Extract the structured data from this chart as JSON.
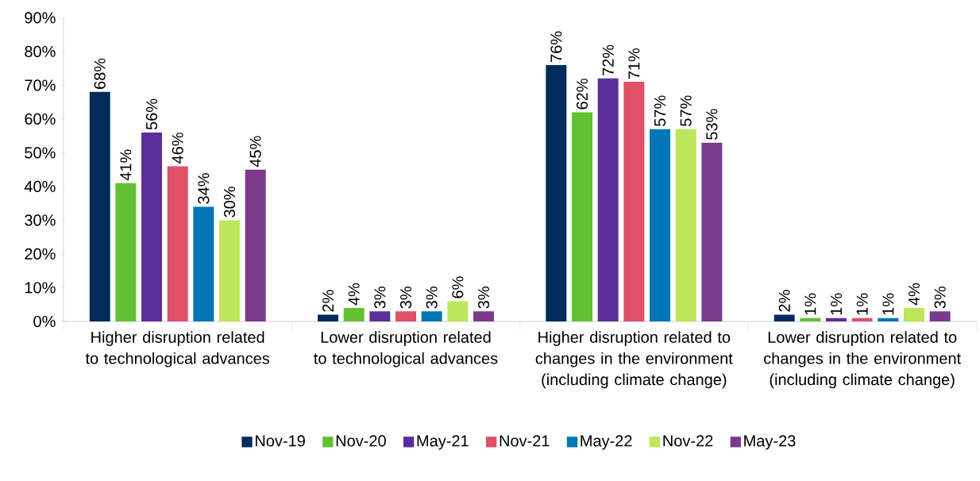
{
  "chart_data": {
    "type": "bar",
    "categories": [
      "Higher disruption related to technological advances",
      "Lower disruption related to technological advances",
      "Higher disruption related to changes in the environment (including climate change)",
      "Lower disruption related to changes in the environment (including climate change)"
    ],
    "series": [
      {
        "name": "Nov-19",
        "color": "#002b5c",
        "values": [
          68,
          2,
          76,
          2
        ],
        "value_labels": [
          "68%",
          "2%",
          "76%",
          "2%"
        ]
      },
      {
        "name": "Nov-20",
        "color": "#62c132",
        "values": [
          41,
          4,
          62,
          1
        ],
        "value_labels": [
          "41%",
          "4%",
          "62%",
          "1%"
        ]
      },
      {
        "name": "May-21",
        "color": "#5b2f9b",
        "values": [
          56,
          3,
          72,
          1
        ],
        "value_labels": [
          "56%",
          "3%",
          "72%",
          "1%"
        ]
      },
      {
        "name": "Nov-21",
        "color": "#e05067",
        "values": [
          46,
          3,
          71,
          1
        ],
        "value_labels": [
          "46%",
          "3%",
          "71%",
          "1%"
        ]
      },
      {
        "name": "May-22",
        "color": "#0076b6",
        "values": [
          34,
          3,
          57,
          1
        ],
        "value_labels": [
          "34%",
          "3%",
          "57%",
          "1%"
        ]
      },
      {
        "name": "Nov-22",
        "color": "#bde65a",
        "values": [
          30,
          6,
          57,
          4
        ],
        "value_labels": [
          "30%",
          "6%",
          "57%",
          "4%"
        ]
      },
      {
        "name": "May-23",
        "color": "#7b3a8c",
        "values": [
          45,
          3,
          53,
          3
        ],
        "value_labels": [
          "45%",
          "3%",
          "53%",
          "3%"
        ]
      }
    ],
    "ylim": [
      0,
      90
    ],
    "yticks": [
      {
        "value": 0,
        "label": "0%"
      },
      {
        "value": 10,
        "label": "10%"
      },
      {
        "value": 20,
        "label": "20%"
      },
      {
        "value": 30,
        "label": "30%"
      },
      {
        "value": 40,
        "label": "40%"
      },
      {
        "value": 50,
        "label": "50%"
      },
      {
        "value": 60,
        "label": "60%"
      },
      {
        "value": 70,
        "label": "70%"
      },
      {
        "value": 80,
        "label": "80%"
      },
      {
        "value": 90,
        "label": "90%"
      }
    ],
    "grid": false,
    "legend": "bottom"
  }
}
